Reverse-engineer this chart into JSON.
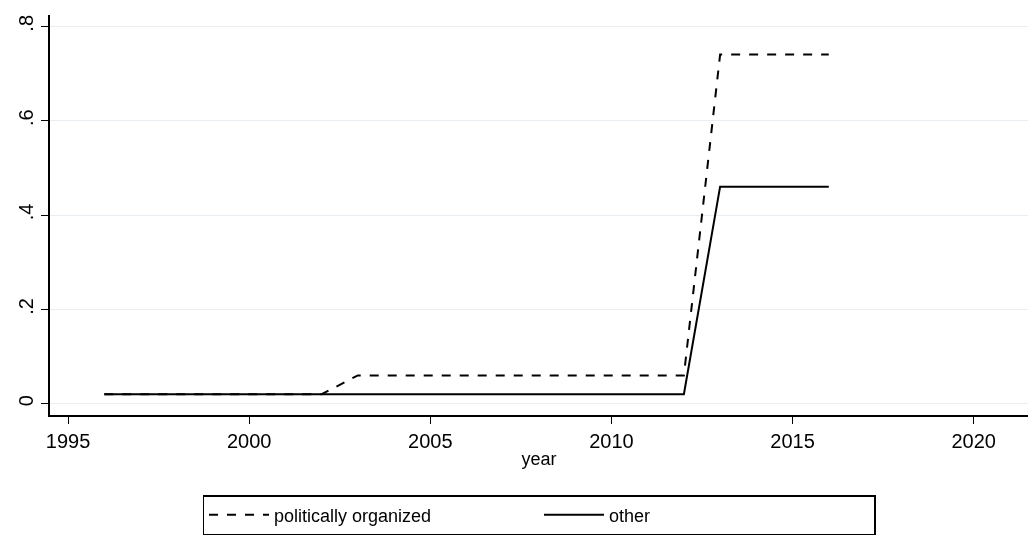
{
  "chart_data": {
    "type": "line",
    "xlabel": "year",
    "xlim": [
      1994.5,
      2021.5
    ],
    "xticks": [
      1995,
      2000,
      2005,
      2010,
      2015,
      2020
    ],
    "ylim": [
      -0.024,
      0.824
    ],
    "yticks": [
      {
        "value": 0,
        "label": "0"
      },
      {
        "value": 0.2,
        "label": ".2"
      },
      {
        "value": 0.4,
        "label": ".4"
      },
      {
        "value": 0.6,
        "label": ".6"
      },
      {
        "value": 0.8,
        "label": ".8"
      }
    ],
    "grid": "y",
    "legend": "bottom",
    "marker": "none",
    "series": [
      {
        "name": "politically organized",
        "color": "#000000",
        "line_style": "dashed",
        "x": [
          1996,
          2002,
          2003,
          2012,
          2013,
          2016
        ],
        "values": [
          0.02,
          0.02,
          0.06,
          0.06,
          0.74,
          0.74
        ]
      },
      {
        "name": "other",
        "color": "#000000",
        "line_style": "solid",
        "x": [
          1996,
          2012,
          2013,
          2016
        ],
        "values": [
          0.02,
          0.02,
          0.46,
          0.46
        ]
      }
    ]
  }
}
